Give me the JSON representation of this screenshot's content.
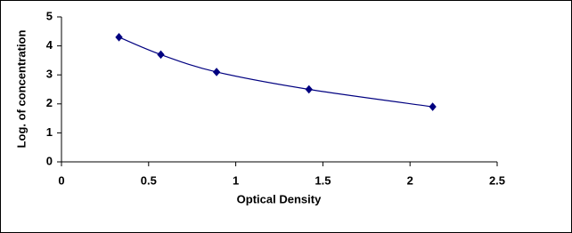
{
  "chart_data": {
    "type": "scatter",
    "smooth_line": true,
    "x_label": "Optical Density",
    "y_label": "Log. of concentration",
    "series": [
      {
        "color": "#000080",
        "x": [
          0.33,
          0.57,
          0.89,
          1.42,
          2.13
        ],
        "values": [
          4.3,
          3.7,
          3.1,
          2.5,
          1.9
        ]
      }
    ],
    "xlim": [
      0,
      2.5
    ],
    "xticks": [
      0,
      0.5,
      1,
      1.5,
      2,
      2.5
    ],
    "ylim": [
      0,
      5
    ],
    "yticks": [
      0,
      1,
      2,
      3,
      4,
      5
    ]
  }
}
